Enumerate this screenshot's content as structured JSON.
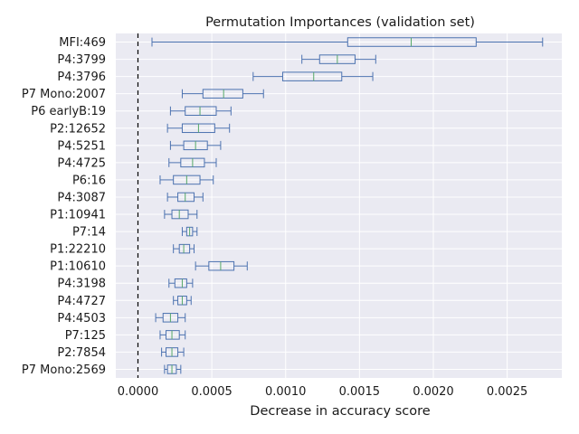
{
  "chart_data": {
    "type": "boxplot",
    "orientation": "horizontal",
    "title": "Permutation Importances (validation set)",
    "xlabel": "Decrease in accuracy score",
    "ylabel": "",
    "xlim": [
      -0.00015,
      0.00287
    ],
    "xticks": [
      {
        "value": 0.0,
        "label": "0.0000"
      },
      {
        "value": 0.0005,
        "label": "0.0005"
      },
      {
        "value": 0.001,
        "label": "0.0010"
      },
      {
        "value": 0.0015,
        "label": "0.0015"
      },
      {
        "value": 0.002,
        "label": "0.0020"
      },
      {
        "value": 0.0025,
        "label": "0.0025"
      }
    ],
    "reference_line": {
      "x": 0.0,
      "style": "dashed"
    },
    "grid": true,
    "colors": {
      "box": "#4c72b0",
      "median": "#55a868",
      "background": "#eaeaf2",
      "grid": "#ffffff",
      "refline": "#000000"
    },
    "features": [
      {
        "name": "MFI:469",
        "whislo": 9.5e-05,
        "q1": 0.00142,
        "med": 0.00185,
        "q3": 0.00229,
        "whishi": 0.00274
      },
      {
        "name": "P4:3799",
        "whislo": 0.00111,
        "q1": 0.00123,
        "med": 0.00135,
        "q3": 0.00147,
        "whishi": 0.00161
      },
      {
        "name": "P4:3796",
        "whislo": 0.00078,
        "q1": 0.00098,
        "med": 0.00119,
        "q3": 0.00138,
        "whishi": 0.00159
      },
      {
        "name": "P7 Mono:2007",
        "whislo": 0.0003,
        "q1": 0.00044,
        "med": 0.00058,
        "q3": 0.00071,
        "whishi": 0.00085
      },
      {
        "name": "P6 earlyB:19",
        "whislo": 0.00022,
        "q1": 0.00032,
        "med": 0.00042,
        "q3": 0.00053,
        "whishi": 0.00063
      },
      {
        "name": "P2:12652",
        "whislo": 0.0002,
        "q1": 0.0003,
        "med": 0.00041,
        "q3": 0.00052,
        "whishi": 0.00062
      },
      {
        "name": "P4:5251",
        "whislo": 0.00022,
        "q1": 0.00031,
        "med": 0.00039,
        "q3": 0.00047,
        "whishi": 0.00056
      },
      {
        "name": "P4:4725",
        "whislo": 0.00021,
        "q1": 0.00029,
        "med": 0.00037,
        "q3": 0.00045,
        "whishi": 0.00053
      },
      {
        "name": "P6:16",
        "whislo": 0.00015,
        "q1": 0.00024,
        "med": 0.00033,
        "q3": 0.00042,
        "whishi": 0.00051
      },
      {
        "name": "P4:3087",
        "whislo": 0.0002,
        "q1": 0.00027,
        "med": 0.00032,
        "q3": 0.00038,
        "whishi": 0.00044
      },
      {
        "name": "P1:10941",
        "whislo": 0.00018,
        "q1": 0.00023,
        "med": 0.00028,
        "q3": 0.00034,
        "whishi": 0.0004
      },
      {
        "name": "P7:14",
        "whislo": 0.0003,
        "q1": 0.00033,
        "med": 0.00035,
        "q3": 0.00037,
        "whishi": 0.0004
      },
      {
        "name": "P1:22210",
        "whislo": 0.00024,
        "q1": 0.00028,
        "med": 0.00031,
        "q3": 0.00035,
        "whishi": 0.00038
      },
      {
        "name": "P1:10610",
        "whislo": 0.00039,
        "q1": 0.00048,
        "med": 0.00056,
        "q3": 0.00065,
        "whishi": 0.00074
      },
      {
        "name": "P4:3198",
        "whislo": 0.00021,
        "q1": 0.00025,
        "med": 0.0003,
        "q3": 0.00033,
        "whishi": 0.00037
      },
      {
        "name": "P4:4727",
        "whislo": 0.00024,
        "q1": 0.00027,
        "med": 0.0003,
        "q3": 0.00033,
        "whishi": 0.00036
      },
      {
        "name": "P4:4503",
        "whislo": 0.00012,
        "q1": 0.00017,
        "med": 0.00022,
        "q3": 0.00027,
        "whishi": 0.00032
      },
      {
        "name": "P7:125",
        "whislo": 0.00015,
        "q1": 0.00019,
        "med": 0.00023,
        "q3": 0.00028,
        "whishi": 0.00032
      },
      {
        "name": "P2:7854",
        "whislo": 0.00016,
        "q1": 0.00019,
        "med": 0.00023,
        "q3": 0.00027,
        "whishi": 0.00031
      },
      {
        "name": "P7 Mono:2569",
        "whislo": 0.00018,
        "q1": 0.0002,
        "med": 0.00023,
        "q3": 0.00026,
        "whishi": 0.00029
      }
    ]
  }
}
